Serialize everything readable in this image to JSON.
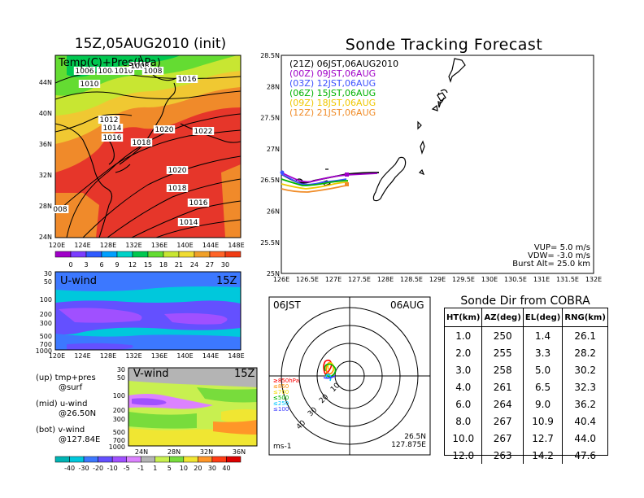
{
  "left_title": "15Z,05AUG2010 (init)",
  "right_title": "Sonde Tracking Forecast",
  "map_panel": {
    "label": "Temp(C)+Pres(hPa)",
    "lat_ticks": [
      "44N",
      "40N",
      "36N",
      "32N",
      "28N",
      "24N"
    ],
    "lon_ticks": [
      "120E",
      "124E",
      "128E",
      "132E",
      "136E",
      "140E",
      "144E",
      "148E"
    ],
    "pressure_labels": [
      "1006",
      "1004",
      "1010",
      "1008",
      "1008",
      "1010",
      "1016",
      "1012",
      "1014",
      "1016",
      "1018",
      "1020",
      "1022",
      "1020",
      "1018",
      "1016",
      "1014",
      "008"
    ],
    "colorbar_values": [
      "0",
      "3",
      "6",
      "9",
      "12",
      "15",
      "18",
      "21",
      "24",
      "27",
      "30"
    ],
    "colorbar_colors": [
      "#a000c8",
      "#7b3cff",
      "#2f5bff",
      "#00a0ff",
      "#00d2c8",
      "#00c850",
      "#64dc32",
      "#c8e632",
      "#f0dc32",
      "#f0a028",
      "#ff6428",
      "#f03c14"
    ]
  },
  "u_panel": {
    "label": "U-wind",
    "time": "15Z",
    "y_ticks": [
      "30",
      "50",
      "100",
      "200",
      "300",
      "500",
      "700",
      "1000"
    ],
    "lon_ticks": [
      "120E",
      "124E",
      "128E",
      "132E",
      "136E",
      "140E",
      "144E",
      "148E"
    ]
  },
  "v_panel": {
    "label": "V-wind",
    "time": "15Z",
    "y_ticks": [
      "30",
      "50",
      "100",
      "200",
      "300",
      "500",
      "700",
      "1000"
    ],
    "lat_ticks": [
      "24N",
      "28N",
      "32N",
      "36N"
    ],
    "colorbar_values": [
      "-40",
      "-30",
      "-20",
      "-10",
      "-5",
      "-1",
      "1",
      "5",
      "10",
      "20",
      "30",
      "40"
    ],
    "colorbar_colors": [
      "#00b4b4",
      "#00c8dc",
      "#3c78ff",
      "#6450ff",
      "#a050ff",
      "#dc82ff",
      "#b4b4b4",
      "#c8f050",
      "#78dc3c",
      "#f0e632",
      "#ff9628",
      "#ff3c14",
      "#dc0000"
    ]
  },
  "left_notes": {
    "up": "(up) tmp+pres",
    "up2": "@surf",
    "mid": "(mid) u-wind",
    "mid2": "@26.50N",
    "bot": "(bot) v-wind",
    "bot2": "@127.84E"
  },
  "track_panel": {
    "legend": [
      {
        "text": "(21Z) 06JST,06AUG2010",
        "color": "#000000"
      },
      {
        "text": "(00Z) 09JST,06AUG",
        "color": "#a000c8"
      },
      {
        "text": "(03Z) 12JST,06AUG",
        "color": "#3c50ff"
      },
      {
        "text": "(06Z) 15JST,06AUG",
        "color": "#00b400"
      },
      {
        "text": "(09Z) 18JST,06AUG",
        "color": "#f0c800"
      },
      {
        "text": "(12Z) 21JST,06AUG",
        "color": "#f08c28"
      }
    ],
    "lat_ticks": [
      "28.5N",
      "28N",
      "27.5N",
      "27N",
      "26.5N",
      "26N",
      "25.5N",
      "25N"
    ],
    "lon_ticks": [
      "126E",
      "126.5E",
      "127E",
      "127.5E",
      "128E",
      "128.5E",
      "129E",
      "129.5E",
      "130E",
      "130.5E",
      "131E",
      "131.5E",
      "132E"
    ],
    "info": [
      "VUP= 5.0 m/s",
      "VDW= -3.0 m/s",
      "Burst Alt= 25.0 km"
    ]
  },
  "polar_panel": {
    "left_label": "06JST",
    "right_label": "06AUG",
    "pos1": "26.5N",
    "pos2": "127.875E",
    "unit": "ms-1",
    "ring_labels": [
      "10",
      "20",
      "30",
      "40"
    ],
    "pressure_legend": [
      {
        "text": "≥850hPa",
        "color": "#ff0000"
      },
      {
        "text": "≤850",
        "color": "#ff8c00"
      },
      {
        "text": "≤700",
        "color": "#f0dc00"
      },
      {
        "text": "≤500",
        "color": "#00b400"
      },
      {
        "text": "≤250",
        "color": "#00c8ff"
      },
      {
        "text": "≤100",
        "color": "#3c3cff"
      }
    ]
  },
  "sonde_table": {
    "title": "Sonde Dir from COBRA",
    "headers": [
      "HT(km)",
      "AZ(deg)",
      "EL(deg)",
      "RNG(km)"
    ],
    "rows": [
      [
        "1.0",
        "250",
        "1.4",
        "26.1"
      ],
      [
        "2.0",
        "255",
        "3.3",
        "28.2"
      ],
      [
        "3.0",
        "258",
        "5.0",
        "30.2"
      ],
      [
        "4.0",
        "261",
        "6.5",
        "32.3"
      ],
      [
        "6.0",
        "264",
        "9.0",
        "36.2"
      ],
      [
        "8.0",
        "267",
        "10.9",
        "40.4"
      ],
      [
        "10.0",
        "267",
        "12.7",
        "44.0"
      ],
      [
        "12.0",
        "263",
        "14.2",
        "47.6"
      ]
    ]
  }
}
